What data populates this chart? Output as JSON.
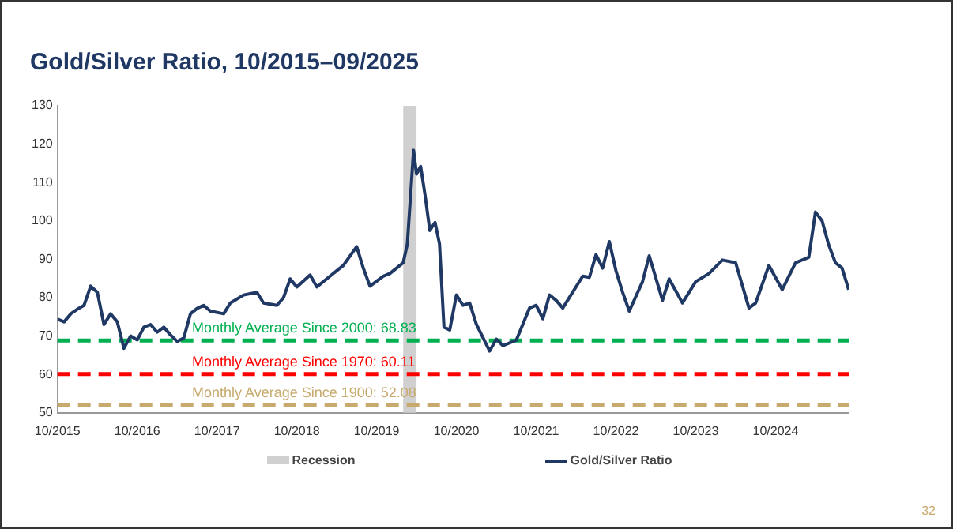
{
  "chart_data": {
    "type": "line",
    "title": "Gold/Silver Ratio, 10/2015–09/2025",
    "xlim": [
      "2015-10",
      "2025-09"
    ],
    "xticks": [
      {
        "value": "2015-10",
        "label": "10/2015"
      },
      {
        "value": "2016-10",
        "label": "10/2016"
      },
      {
        "value": "2017-10",
        "label": "10/2017"
      },
      {
        "value": "2018-10",
        "label": "10/2018"
      },
      {
        "value": "2019-10",
        "label": "10/2019"
      },
      {
        "value": "2020-10",
        "label": "10/2020"
      },
      {
        "value": "2021-10",
        "label": "10/2021"
      },
      {
        "value": "2022-10",
        "label": "10/2022"
      },
      {
        "value": "2023-10",
        "label": "10/2023"
      },
      {
        "value": "2024-10",
        "label": "10/2024"
      }
    ],
    "ylim": [
      50,
      130
    ],
    "yticks": [
      50,
      60,
      70,
      80,
      90,
      100,
      110,
      120,
      130
    ],
    "grid": false,
    "legend": "bottom",
    "marker": "none",
    "line_style": "solid",
    "series": [
      {
        "name": "Gold/Silver Ratio",
        "color": "#1f3864",
        "x": [
          "2015-10",
          "2015-11",
          "2015-12",
          "2016-01",
          "2016-02",
          "2016-03",
          "2016-04",
          "2016-05",
          "2016-06",
          "2016-07",
          "2016-08",
          "2016-09",
          "2016-10",
          "2016-11",
          "2016-12",
          "2017-01",
          "2017-02",
          "2017-03",
          "2017-04",
          "2017-05",
          "2017-06",
          "2017-07",
          "2017-08",
          "2017-09",
          "2017-11",
          "2017-12",
          "2018-02",
          "2018-04",
          "2018-05",
          "2018-07",
          "2018-08",
          "2018-09",
          "2018-10",
          "2018-12",
          "2019-01",
          "2019-03",
          "2019-05",
          "2019-07",
          "2019-08",
          "2019-09",
          "2019-11",
          "2019-12",
          "2020-01",
          "2020-02-01",
          "2020-02-20",
          "2020-03-18",
          "2020-04-01",
          "2020-04-20",
          "2020-05-10",
          "2020-06-01",
          "2020-06-25",
          "2020-07-15",
          "2020-08-05",
          "2020-09",
          "2020-10",
          "2020-11",
          "2020-12",
          "2021-01",
          "2021-03",
          "2021-04",
          "2021-05",
          "2021-07",
          "2021-09",
          "2021-10",
          "2021-11",
          "2021-12",
          "2022-01",
          "2022-02",
          "2022-05",
          "2022-06",
          "2022-07",
          "2022-08",
          "2022-09",
          "2022-10",
          "2022-11",
          "2022-12",
          "2023-02",
          "2023-03",
          "2023-05",
          "2023-06",
          "2023-08",
          "2023-10",
          "2023-12",
          "2024-02",
          "2024-04",
          "2024-06",
          "2024-07",
          "2024-09",
          "2024-11",
          "2025-01",
          "2025-03",
          "2025-04",
          "2025-05",
          "2025-06",
          "2025-07",
          "2025-08",
          "2025-09"
        ],
        "values": [
          74.4,
          73.7,
          75.8,
          77,
          78,
          83,
          81.4,
          73,
          75.8,
          73.7,
          66.8,
          70,
          69,
          72.3,
          73,
          71,
          72.3,
          70.3,
          68.6,
          69.5,
          75.8,
          77.2,
          78,
          76.5,
          75.8,
          78.6,
          80.7,
          81.4,
          78.6,
          78,
          80,
          84.9,
          82.8,
          85.9,
          82.8,
          85.6,
          88.4,
          93.3,
          87.7,
          83,
          85.6,
          86.3,
          87.7,
          89.1,
          94,
          118.4,
          112.2,
          114.2,
          106.6,
          97.5,
          99.6,
          94,
          72.3,
          71.6,
          80.7,
          78,
          78.6,
          73.1,
          66.1,
          69.2,
          67.5,
          68.9,
          77.3,
          78,
          74.5,
          80.7,
          79.3,
          77.3,
          85.6,
          85.3,
          91.2,
          87.7,
          94.6,
          87,
          81.4,
          76.5,
          84.2,
          90.9,
          79.3,
          84.9,
          78.6,
          84.2,
          86.3,
          89.8,
          89.1,
          77.3,
          78.6,
          88.4,
          82.1,
          89.1,
          90.5,
          102.3,
          100,
          93.7,
          89.1,
          87.7,
          82.1
        ]
      }
    ],
    "bands": [
      {
        "axis": "x",
        "from": "2020-02",
        "to": "2020-04",
        "label": "Recession",
        "color": "#d0d0d0"
      }
    ],
    "ref_lines": [
      {
        "axis": "y",
        "value": 68.83,
        "label": "Monthly Average Since 2000: 68.83",
        "color": "#00b050",
        "line_style": "dashed"
      },
      {
        "axis": "y",
        "value": 60.11,
        "label": "Monthly Average Since 1970: 60.11",
        "color": "#ff0000",
        "line_style": "dashed"
      },
      {
        "axis": "y",
        "value": 52.08,
        "label": "Monthly Average Since 1900: 52.08",
        "color": "#c8aa6e",
        "line_style": "dashed"
      }
    ],
    "annotations": [
      "32"
    ]
  }
}
